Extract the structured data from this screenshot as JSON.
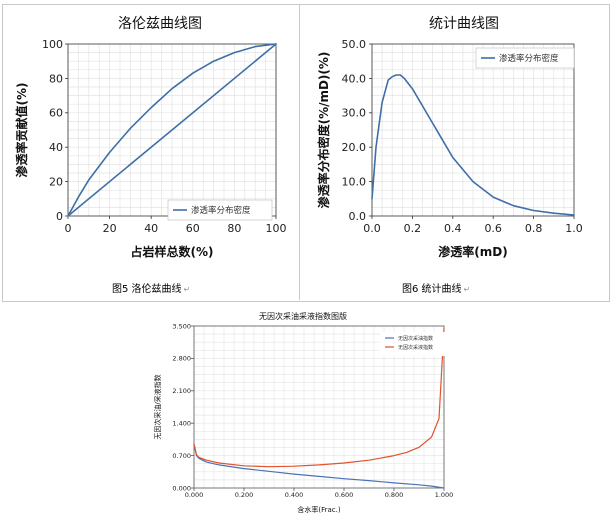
{
  "chart_data": [
    {
      "type": "line",
      "title": "洛伦兹曲线图",
      "xlabel": "占岩样总数(%)",
      "ylabel": "渗透率贡献值(%)",
      "xlim": [
        0,
        100
      ],
      "ylim": [
        0,
        100
      ],
      "xticks": [
        "0",
        "20",
        "40",
        "60",
        "80",
        "100"
      ],
      "yticks": [
        "0",
        "20",
        "40",
        "60",
        "80",
        "100"
      ],
      "grid": true,
      "legend_position": "bottom-right",
      "series": [
        {
          "name": "渗透率分布密度",
          "color": "#3e6fa6",
          "x": [
            0,
            5,
            10,
            20,
            30,
            40,
            50,
            60,
            70,
            80,
            90,
            100
          ],
          "y": [
            0,
            11,
            21,
            37,
            51,
            63,
            74,
            83,
            90,
            95,
            98.5,
            100
          ]
        },
        {
          "name": "",
          "color": "#3e6fa6",
          "x": [
            0,
            100
          ],
          "y": [
            0,
            100
          ]
        }
      ]
    },
    {
      "type": "line",
      "title": "统计曲线图",
      "xlabel": "渗透率(mD)",
      "ylabel": "渗透率分布密度(%/mD)(%)",
      "xlim": [
        0,
        1.0
      ],
      "ylim": [
        0,
        50
      ],
      "xticks": [
        "0.0",
        "0.2",
        "0.4",
        "0.6",
        "0.8",
        "1.0"
      ],
      "yticks": [
        "0.0",
        "10.0",
        "20.0",
        "30.0",
        "40.0",
        "50.0"
      ],
      "grid": true,
      "legend_position": "top-right",
      "series": [
        {
          "name": "渗透率分布密度",
          "color": "#3e6fa6",
          "x": [
            0.0,
            0.02,
            0.05,
            0.08,
            0.1,
            0.12,
            0.14,
            0.16,
            0.2,
            0.25,
            0.3,
            0.35,
            0.4,
            0.5,
            0.6,
            0.7,
            0.8,
            0.9,
            1.0
          ],
          "y": [
            5,
            20,
            33,
            39.5,
            40.5,
            41,
            41,
            40,
            37,
            32,
            27,
            22,
            17,
            10,
            5.5,
            3,
            1.6,
            0.8,
            0.3
          ]
        }
      ]
    },
    {
      "type": "line",
      "title": "无因次采油采液指数图版",
      "xlabel": "含水率(Frac.)",
      "ylabel": "无因次采油/采液指数",
      "xlim": [
        0,
        1.0
      ],
      "ylim": [
        0,
        3.5
      ],
      "xticks": [
        "0.000",
        "0.200",
        "0.400",
        "0.600",
        "0.800",
        "1.000"
      ],
      "yticks": [
        "0.000",
        "0.700",
        "1.400",
        "2.100",
        "2.800",
        "3.500"
      ],
      "grid": true,
      "legend_position": "top-right",
      "series": [
        {
          "name": "无因次采油指数",
          "color": "#4a72b8",
          "x": [
            0,
            0.01,
            0.02,
            0.05,
            0.1,
            0.2,
            0.3,
            0.4,
            0.5,
            0.6,
            0.7,
            0.8,
            0.9,
            0.95,
            1.0
          ],
          "y": [
            0.95,
            0.7,
            0.64,
            0.56,
            0.5,
            0.42,
            0.36,
            0.3,
            0.25,
            0.2,
            0.16,
            0.11,
            0.07,
            0.04,
            0.0
          ]
        },
        {
          "name": "无因次采液指数",
          "color": "#e0532c",
          "x": [
            0,
            0.01,
            0.02,
            0.05,
            0.1,
            0.2,
            0.3,
            0.4,
            0.5,
            0.6,
            0.7,
            0.8,
            0.85,
            0.9,
            0.95,
            0.98,
            1.0
          ],
          "y": [
            0.95,
            0.72,
            0.66,
            0.6,
            0.54,
            0.48,
            0.46,
            0.47,
            0.5,
            0.54,
            0.6,
            0.7,
            0.77,
            0.88,
            1.1,
            1.5,
            3.45
          ]
        }
      ]
    }
  ],
  "captions": {
    "fig5": "图5   洛伦兹曲线",
    "fig6": "图6   统计曲线"
  }
}
